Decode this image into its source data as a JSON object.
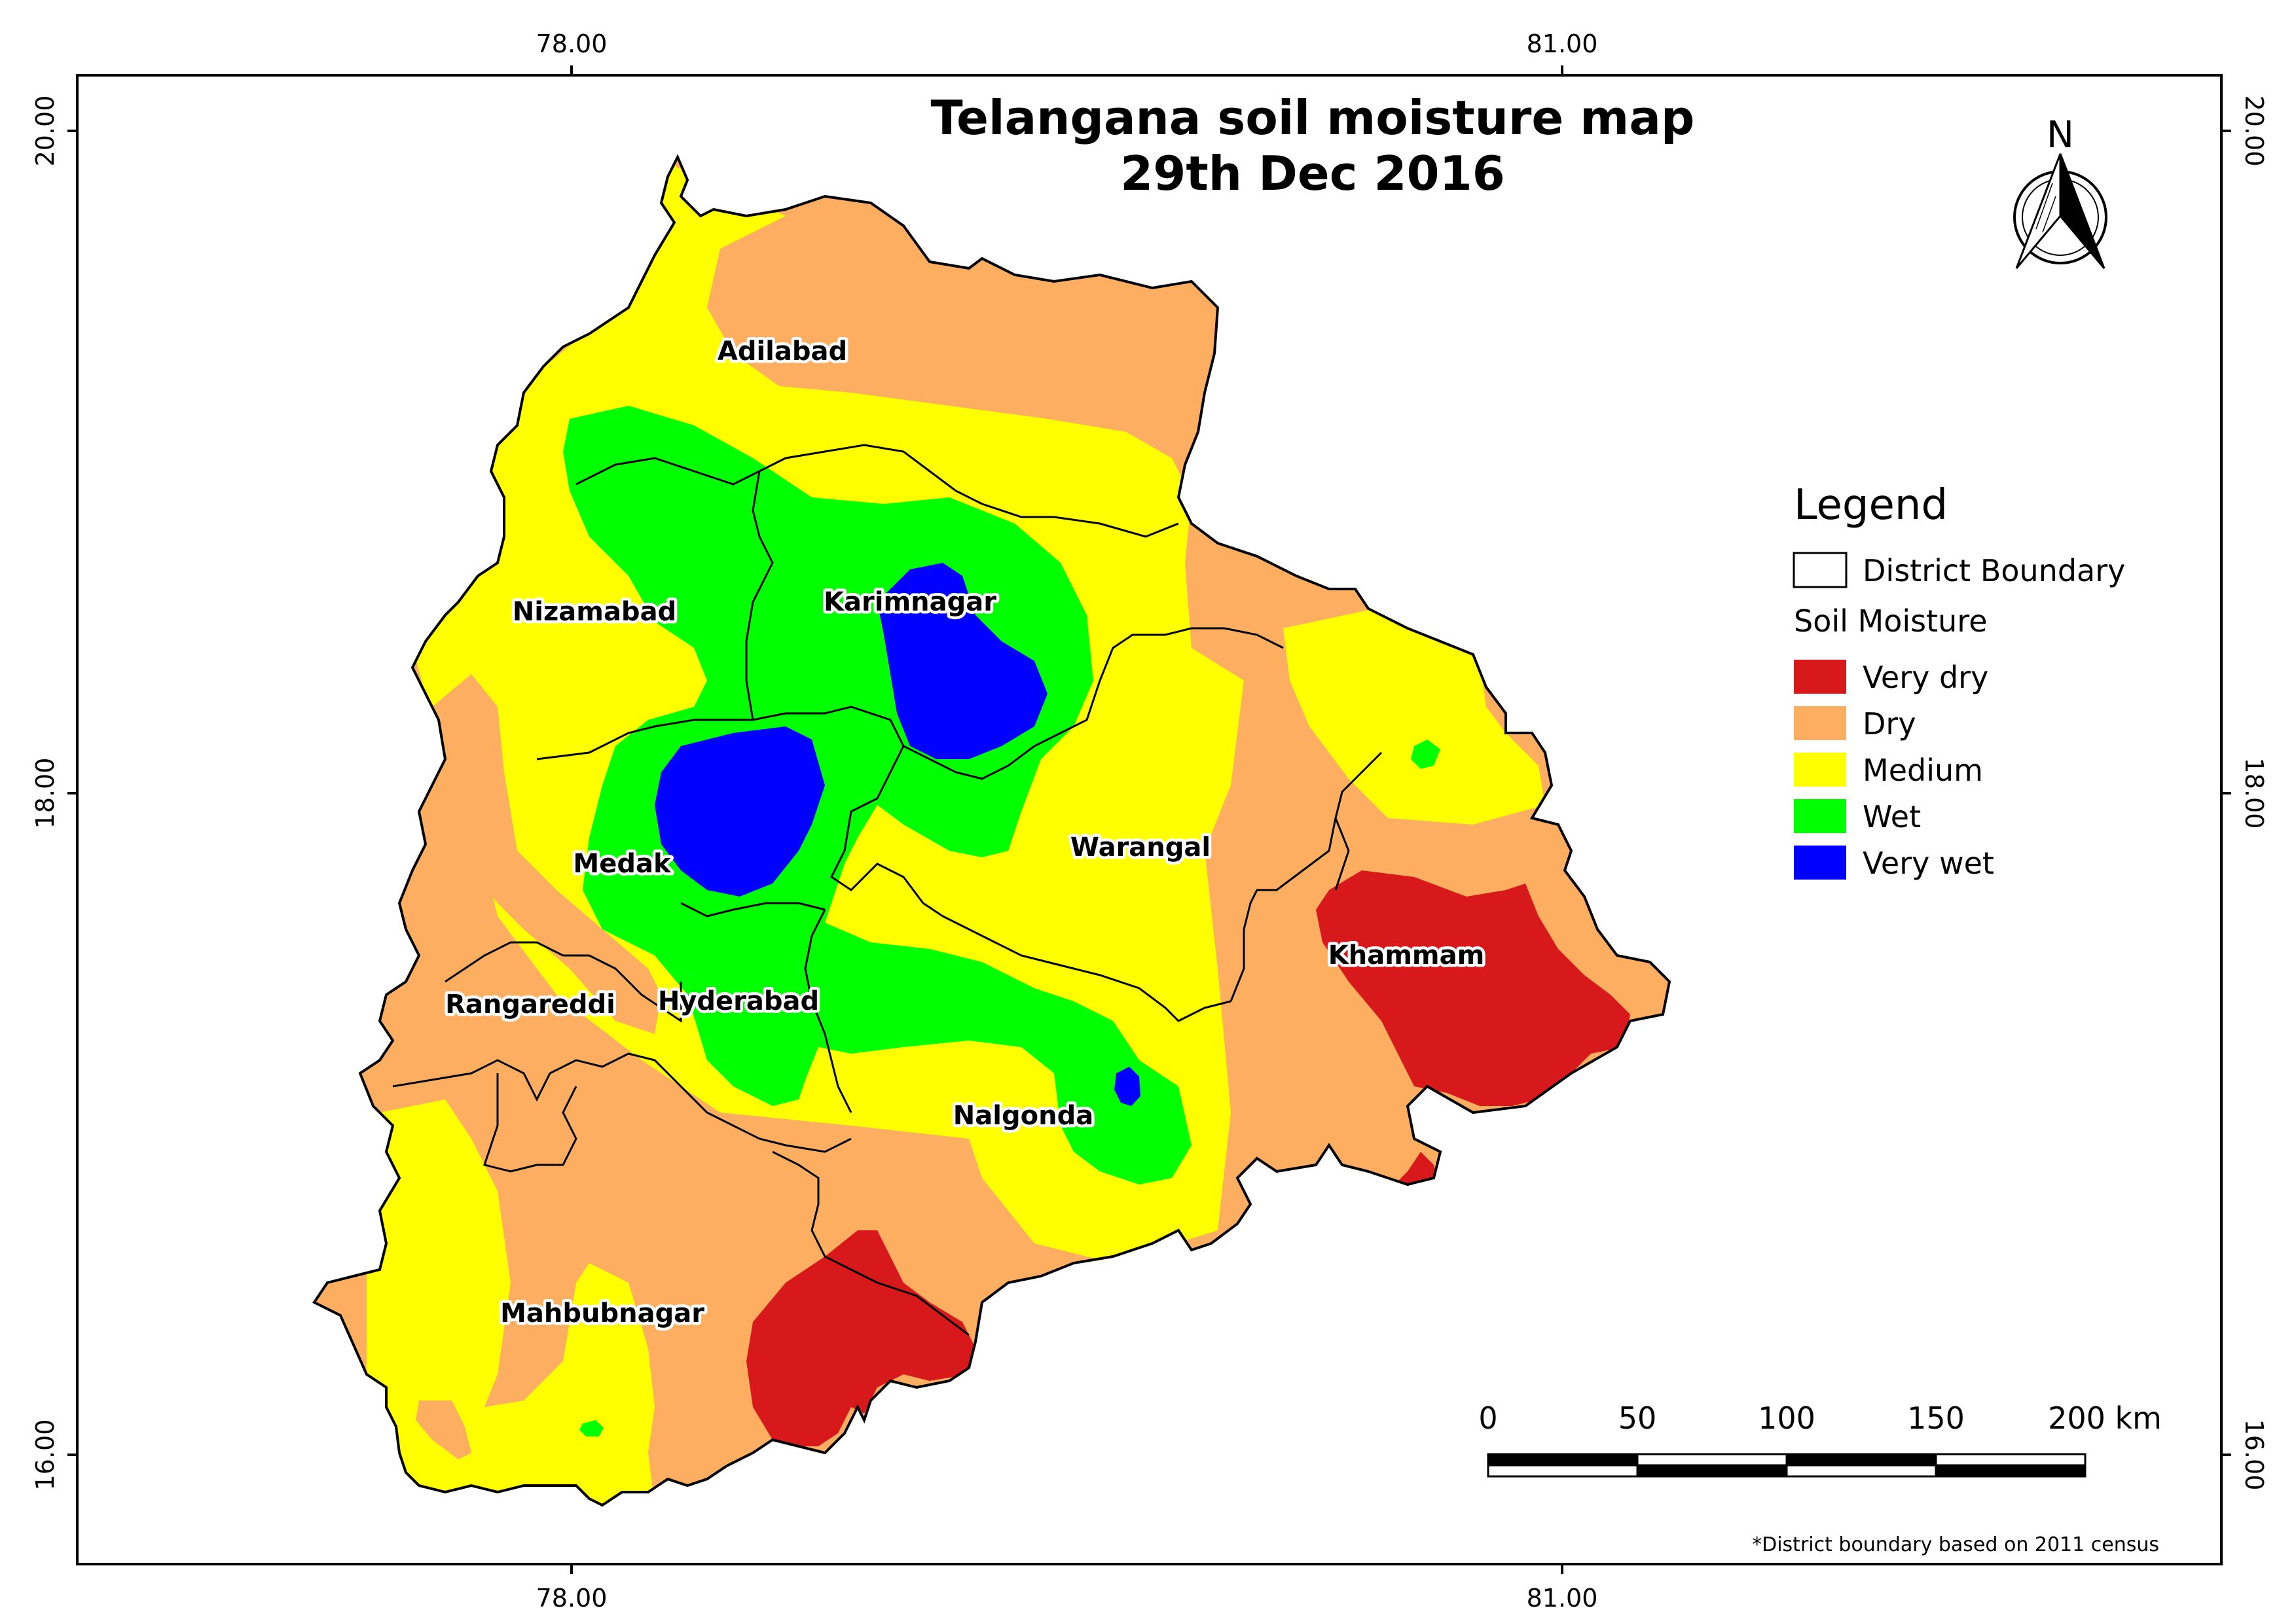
{
  "title": {
    "line1": "Telangana soil moisture map",
    "line2": "29th Dec 2016"
  },
  "grid": {
    "x_labels": [
      "78.00",
      "81.00"
    ],
    "y_labels": [
      "20.00",
      "18.00",
      "16.00"
    ]
  },
  "districts": [
    {
      "name": "Adilabad"
    },
    {
      "name": "Nizamabad"
    },
    {
      "name": "Karimnagar"
    },
    {
      "name": "Medak"
    },
    {
      "name": "Warangal"
    },
    {
      "name": "Hyderabad"
    },
    {
      "name": "Rangareddi"
    },
    {
      "name": "Khammam"
    },
    {
      "name": "Nalgonda"
    },
    {
      "name": "Mahbubnagar"
    }
  ],
  "legend": {
    "title": "Legend",
    "boundary_label": "District Boundary",
    "section_label": "Soil Moisture",
    "classes": [
      {
        "label": "Very dry",
        "color": "#d7191c"
      },
      {
        "label": "Dry",
        "color": "#fdae61"
      },
      {
        "label": "Medium",
        "color": "#ffff00"
      },
      {
        "label": "Wet",
        "color": "#00ff00"
      },
      {
        "label": "Very wet",
        "color": "#0000ff"
      }
    ]
  },
  "scale_bar": {
    "ticks": [
      "0",
      "50",
      "100",
      "150",
      "200 km"
    ]
  },
  "north_arrow": {
    "label": "N",
    "icon": "north-arrow-icon"
  },
  "footnote": "*District boundary based on 2011 census"
}
